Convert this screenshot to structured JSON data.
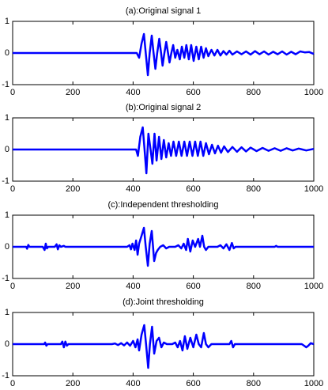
{
  "chart_data": [
    {
      "type": "line",
      "title": "(a):Original signal 1",
      "color": "#0000ff",
      "x": [
        0,
        400,
        412,
        420,
        428,
        436,
        442,
        449,
        455,
        462,
        468,
        474,
        480,
        487,
        493,
        498,
        504,
        510,
        516,
        521,
        527,
        533,
        540,
        547,
        555,
        562,
        570,
        577,
        585,
        593,
        601,
        610,
        618,
        626,
        634,
        642,
        650,
        660,
        670,
        680,
        690,
        700,
        710,
        720,
        730,
        745,
        760,
        775,
        790,
        805,
        820,
        835,
        850,
        865,
        880,
        895,
        910,
        925,
        940,
        955,
        970,
        985,
        1000
      ],
      "values": [
        0,
        0,
        0,
        -0.15,
        0.3,
        0.6,
        0,
        -0.7,
        0,
        0.55,
        0,
        -0.5,
        0,
        0.45,
        0,
        -0.4,
        0,
        0.35,
        0,
        -0.3,
        0,
        0.25,
        -0.15,
        0.1,
        -0.2,
        0.2,
        -0.15,
        0.25,
        -0.2,
        0.25,
        -0.25,
        0.2,
        -0.2,
        0.2,
        -0.15,
        0.15,
        -0.1,
        0.1,
        -0.08,
        0.1,
        -0.08,
        0.06,
        -0.05,
        0.07,
        -0.05,
        0.05,
        -0.04,
        0.05,
        -0.05,
        0.06,
        -0.04,
        0.05,
        -0.05,
        0.04,
        -0.04,
        0.05,
        -0.05,
        0.04,
        -0.04,
        0.05,
        0.02,
        0.03,
        -0.03
      ],
      "xlim": [
        0,
        1000
      ],
      "ylim": [
        -1,
        1
      ],
      "xticks": [
        0,
        200,
        400,
        600,
        800,
        1000
      ],
      "yticks": [
        -1,
        0,
        1
      ]
    },
    {
      "type": "line",
      "title": "(b):Original signal 2",
      "color": "#0000ff",
      "x": [
        0,
        400,
        410,
        416,
        424,
        432,
        438,
        444,
        451,
        458,
        464,
        471,
        478,
        486,
        494,
        502,
        510,
        518,
        526,
        534,
        543,
        552,
        561,
        570,
        579,
        588,
        597,
        606,
        615,
        624,
        633,
        642,
        652,
        662,
        672,
        682,
        692,
        702,
        715,
        730,
        745,
        760,
        775,
        790,
        810,
        830,
        850,
        870,
        890,
        910,
        930,
        950,
        975,
        1000
      ],
      "values": [
        0,
        0,
        0,
        -0.2,
        0.4,
        0.7,
        0,
        -0.75,
        0.5,
        0,
        -0.45,
        0.5,
        -0.35,
        0.4,
        -0.3,
        0.3,
        -0.25,
        0.2,
        -0.2,
        0.25,
        -0.2,
        0.25,
        -0.2,
        0.25,
        -0.2,
        0.25,
        -0.2,
        0.25,
        -0.2,
        0.25,
        -0.2,
        0.2,
        -0.15,
        0.15,
        -0.12,
        0.12,
        -0.1,
        0.1,
        -0.08,
        0.08,
        -0.07,
        0.07,
        -0.06,
        0.06,
        -0.05,
        0.05,
        -0.04,
        0.04,
        -0.04,
        0.04,
        -0.03,
        0.03,
        -0.03,
        0.02
      ],
      "xlim": [
        0,
        1000
      ],
      "ylim": [
        -1,
        1
      ],
      "xticks": [
        0,
        200,
        400,
        600,
        800,
        1000
      ],
      "yticks": [
        -1,
        0,
        1
      ]
    },
    {
      "type": "line",
      "title": "(c):Independent thresholding",
      "color": "#0000ff",
      "x": [
        0,
        45,
        48,
        52,
        56,
        100,
        106,
        110,
        114,
        118,
        140,
        146,
        150,
        155,
        160,
        170,
        175,
        380,
        388,
        393,
        398,
        405,
        410,
        415,
        420,
        428,
        436,
        442,
        449,
        455,
        462,
        470,
        476,
        482,
        490,
        500,
        510,
        520,
        540,
        550,
        560,
        568,
        576,
        582,
        590,
        598,
        606,
        616,
        622,
        630,
        636,
        642,
        650,
        680,
        690,
        700,
        710,
        720,
        728,
        734,
        740,
        870,
        875,
        880,
        1000
      ],
      "values": [
        0,
        0,
        -0.06,
        0.06,
        0,
        0,
        -0.1,
        0.1,
        -0.05,
        0,
        0,
        0.08,
        -0.08,
        0.05,
        0,
        0.03,
        0,
        0,
        0.05,
        -0.08,
        0.1,
        -0.1,
        0.2,
        -0.25,
        0.1,
        0.35,
        0.6,
        0,
        -0.6,
        0.1,
        0.5,
        -0.45,
        -0.2,
        -0.1,
        0,
        0.05,
        -0.05,
        0,
        0,
        0.05,
        -0.05,
        0.1,
        -0.1,
        0.25,
        -0.15,
        0.2,
        0,
        0.25,
        0,
        0.35,
        0,
        -0.1,
        0,
        0,
        0.05,
        -0.05,
        0.08,
        -0.1,
        0.12,
        -0.05,
        0,
        0,
        0.03,
        0,
        0
      ],
      "xlim": [
        0,
        1000
      ],
      "ylim": [
        -1,
        1
      ],
      "xticks": [
        0,
        200,
        400,
        600,
        800,
        1000
      ],
      "yticks": [
        -1,
        0,
        1
      ]
    },
    {
      "type": "line",
      "title": "(d):Joint thresholding",
      "color": "#0000ff",
      "x": [
        0,
        105,
        108,
        112,
        116,
        160,
        165,
        170,
        175,
        180,
        185,
        330,
        340,
        350,
        360,
        370,
        380,
        390,
        400,
        408,
        415,
        420,
        428,
        437,
        443,
        450,
        456,
        463,
        470,
        478,
        486,
        494,
        502,
        512,
        530,
        540,
        548,
        556,
        564,
        572,
        580,
        590,
        600,
        610,
        618,
        626,
        635,
        642,
        650,
        660,
        720,
        726,
        732,
        738,
        960,
        968,
        975,
        982,
        990,
        1000
      ],
      "values": [
        0,
        0,
        0.05,
        -0.05,
        0,
        0,
        0.08,
        -0.1,
        0.08,
        -0.05,
        0,
        0,
        0.02,
        -0.03,
        0.03,
        -0.04,
        0.05,
        -0.05,
        0.1,
        -0.1,
        0.15,
        -0.2,
        0.3,
        0.6,
        0,
        -0.75,
        0,
        0.55,
        -0.3,
        0.1,
        0.2,
        -0.1,
        0.05,
        0,
        0,
        0.05,
        -0.1,
        0.1,
        -0.2,
        0.25,
        -0.15,
        0.2,
        -0.1,
        0.3,
        0,
        -0.1,
        0.35,
        0,
        -0.1,
        0,
        0,
        0.1,
        -0.1,
        0,
        0,
        -0.05,
        -0.1,
        -0.05,
        0.03,
        0
      ],
      "xlim": [
        0,
        1000
      ],
      "ylim": [
        -1,
        1
      ],
      "xticks": [
        0,
        200,
        400,
        600,
        800,
        1000
      ],
      "yticks": [
        -1,
        0,
        1
      ]
    }
  ]
}
